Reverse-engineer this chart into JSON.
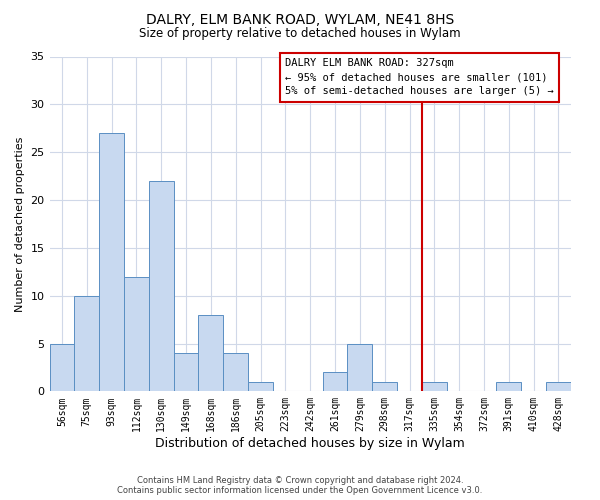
{
  "title": "DALRY, ELM BANK ROAD, WYLAM, NE41 8HS",
  "subtitle": "Size of property relative to detached houses in Wylam",
  "xlabel": "Distribution of detached houses by size in Wylam",
  "ylabel": "Number of detached properties",
  "footer_lines": [
    "Contains HM Land Registry data © Crown copyright and database right 2024.",
    "Contains public sector information licensed under the Open Government Licence v3.0."
  ],
  "bin_labels": [
    "56sqm",
    "75sqm",
    "93sqm",
    "112sqm",
    "130sqm",
    "149sqm",
    "168sqm",
    "186sqm",
    "205sqm",
    "223sqm",
    "242sqm",
    "261sqm",
    "279sqm",
    "298sqm",
    "317sqm",
    "335sqm",
    "354sqm",
    "372sqm",
    "391sqm",
    "410sqm",
    "428sqm"
  ],
  "bar_heights": [
    5,
    10,
    27,
    12,
    22,
    4,
    8,
    4,
    1,
    0,
    0,
    2,
    5,
    1,
    0,
    1,
    0,
    0,
    1,
    0,
    1
  ],
  "bar_color": "#c8d9f0",
  "bar_edge_color": "#5a8fc3",
  "ylim": [
    0,
    35
  ],
  "yticks": [
    0,
    5,
    10,
    15,
    20,
    25,
    30,
    35
  ],
  "property_line_color": "#cc0000",
  "annotation_title": "DALRY ELM BANK ROAD: 327sqm",
  "annotation_line1": "← 95% of detached houses are smaller (101)",
  "annotation_line2": "5% of semi-detached houses are larger (5) →",
  "background_color": "#ffffff",
  "grid_color": "#d0d8e8"
}
